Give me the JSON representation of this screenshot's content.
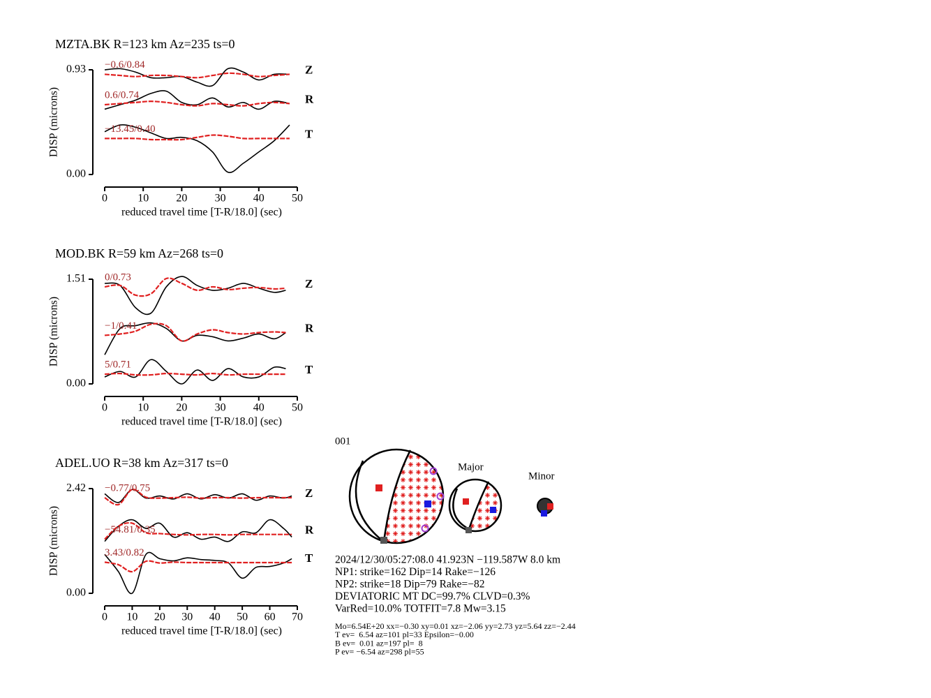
{
  "chart_data": [
    {
      "type": "line",
      "title": "MZTA.BK R=123 km Az=235 ts=0",
      "xlabel": "reduced travel time [T-R/18.0] (sec)",
      "ylabel": "DISP (microns)",
      "xlim": [
        0,
        50
      ],
      "xticks": [
        0,
        10,
        20,
        30,
        40,
        50
      ],
      "ylim": [
        0,
        0.93
      ],
      "yticks": [
        {
          "value": 0,
          "label": "0.00"
        },
        0.93
      ],
      "observed_color": "#000000",
      "synthetic_color": "#e02020",
      "x": [
        0,
        4,
        8,
        12,
        16,
        20,
        24,
        28,
        32,
        36,
        40,
        44,
        48
      ],
      "series": [
        {
          "component": "Z",
          "annotation": "−0.6/0.84",
          "observed": [
            0.93,
            0.94,
            0.91,
            0.86,
            0.86,
            0.87,
            0.82,
            0.79,
            0.94,
            0.91,
            0.84,
            0.89,
            0.89
          ],
          "synthetic": [
            0.89,
            0.88,
            0.87,
            0.88,
            0.88,
            0.87,
            0.86,
            0.88,
            0.9,
            0.89,
            0.87,
            0.88,
            0.89
          ]
        },
        {
          "component": "R",
          "annotation": "0.6/0.74",
          "observed": [
            0.58,
            0.62,
            0.66,
            0.72,
            0.74,
            0.64,
            0.62,
            0.68,
            0.6,
            0.64,
            0.58,
            0.65,
            0.63
          ],
          "synthetic": [
            0.62,
            0.63,
            0.64,
            0.65,
            0.64,
            0.62,
            0.61,
            0.63,
            0.62,
            0.61,
            0.63,
            0.64,
            0.63
          ]
        },
        {
          "component": "T",
          "annotation": "−13.45/0.40",
          "observed": [
            0.38,
            0.44,
            0.42,
            0.37,
            0.32,
            0.33,
            0.3,
            0.2,
            0.02,
            0.1,
            0.2,
            0.3,
            0.44
          ],
          "synthetic": [
            0.32,
            0.32,
            0.32,
            0.31,
            0.31,
            0.31,
            0.33,
            0.35,
            0.34,
            0.32,
            0.32,
            0.32,
            0.32
          ]
        }
      ]
    },
    {
      "type": "line",
      "title": "MOD.BK R=59 km Az=268 ts=0",
      "xlabel": "reduced travel time [T-R/18.0] (sec)",
      "ylabel": "DISP (microns)",
      "xlim": [
        0,
        50
      ],
      "xticks": [
        0,
        10,
        20,
        30,
        40,
        50
      ],
      "ylim": [
        0,
        1.51
      ],
      "yticks": [
        {
          "value": 0,
          "label": "0.00"
        },
        1.51
      ],
      "observed_color": "#000000",
      "synthetic_color": "#e02020",
      "x": [
        0,
        4,
        8,
        12,
        16,
        20,
        24,
        28,
        32,
        36,
        40,
        44,
        47
      ],
      "series": [
        {
          "component": "Z",
          "annotation": "0/0.73",
          "observed": [
            1.45,
            1.42,
            1.1,
            1.02,
            1.4,
            1.55,
            1.42,
            1.35,
            1.38,
            1.45,
            1.38,
            1.32,
            1.35
          ],
          "synthetic": [
            1.4,
            1.42,
            1.28,
            1.3,
            1.52,
            1.45,
            1.35,
            1.4,
            1.36,
            1.38,
            1.39,
            1.37,
            1.38
          ]
        },
        {
          "component": "R",
          "annotation": "−1/0.41",
          "observed": [
            0.42,
            0.8,
            0.84,
            0.88,
            0.8,
            0.62,
            0.7,
            0.68,
            0.62,
            0.66,
            0.72,
            0.65,
            0.74
          ],
          "synthetic": [
            0.7,
            0.72,
            0.76,
            0.86,
            0.84,
            0.62,
            0.72,
            0.78,
            0.74,
            0.72,
            0.74,
            0.75,
            0.74
          ]
        },
        {
          "component": "T",
          "annotation": "5/0.71",
          "observed": [
            0.1,
            0.18,
            0.1,
            0.35,
            0.18,
            0,
            0.2,
            0.05,
            0.22,
            0.1,
            0.1,
            0.24,
            0.22
          ],
          "synthetic": [
            0.14,
            0.15,
            0.13,
            0.13,
            0.15,
            0.14,
            0.13,
            0.15,
            0.13,
            0.14,
            0.14,
            0.14,
            0.14
          ]
        }
      ]
    },
    {
      "type": "line",
      "title": "ADEL.UO R=38 km Az=317 ts=0",
      "xlabel": "reduced travel time [T-R/18.0] (sec)",
      "ylabel": "DISP (microns)",
      "xlim": [
        0,
        70
      ],
      "xticks": [
        0,
        10,
        20,
        30,
        40,
        50,
        60,
        70
      ],
      "ylim": [
        0,
        2.42
      ],
      "yticks": [
        {
          "value": 0,
          "label": "0.00"
        },
        2.42
      ],
      "observed_color": "#000000",
      "synthetic_color": "#e02020",
      "x": [
        0,
        5,
        10,
        15,
        20,
        25,
        30,
        35,
        40,
        45,
        50,
        55,
        60,
        65,
        68
      ],
      "series": [
        {
          "component": "Z",
          "annotation": "−0.77/0.75",
          "observed": [
            2.3,
            2.1,
            2.4,
            2.2,
            2.25,
            2.18,
            2.3,
            2.18,
            2.28,
            2.2,
            2.3,
            2.15,
            2.25,
            2.2,
            2.25
          ],
          "synthetic": [
            2.21,
            2.05,
            2.4,
            2.22,
            2.2,
            2.21,
            2.22,
            2.2,
            2.21,
            2.21,
            2.2,
            2.21,
            2.21,
            2.21,
            2.21
          ]
        },
        {
          "component": "R",
          "annotation": "−54.81/0.35",
          "observed": [
            1.2,
            1.55,
            1.7,
            1.5,
            1.62,
            1.3,
            1.4,
            1.25,
            1.3,
            1.2,
            1.42,
            1.4,
            1.7,
            1.5,
            1.3
          ],
          "synthetic": [
            1.25,
            1.55,
            1.62,
            1.4,
            1.38,
            1.36,
            1.35,
            1.36,
            1.36,
            1.35,
            1.36,
            1.36,
            1.36,
            1.36,
            1.36
          ]
        },
        {
          "component": "T",
          "annotation": "3.43/0.82",
          "observed": [
            0.9,
            0.5,
            0,
            0.9,
            0.8,
            0.75,
            0.82,
            0.78,
            0.76,
            0.7,
            0.35,
            0.6,
            0.62,
            0.7,
            0.8
          ],
          "synthetic": [
            0.72,
            0.66,
            0.5,
            0.74,
            0.7,
            0.72,
            0.71,
            0.71,
            0.71,
            0.71,
            0.71,
            0.71,
            0.71,
            0.71,
            0.71
          ]
        }
      ]
    }
  ],
  "mechanism": {
    "id": "001",
    "major_label": "Major",
    "minor_label": "Minor",
    "lines": [
      "2024/12/30/05:27:08.0 41.923N −119.587W 8.0 km",
      "NP1: strike=162 Dip=14 Rake=−126",
      "NP2: strike=18 Dip=79 Rake=−82",
      "DEVIATORIC MT DC=99.7% CLVD=0.3%",
      "VarRed=10.0% TOTFIT=7.8 Mw=3.15"
    ],
    "details": [
      "Mo=6.54E+20 xx=−0.30 xy=0.01 xz=−2.06 yy=2.73 yz=5.64 zz=−2.44",
      "T ev=  6.54 az=101 pl=33 Epsilon=−0.00",
      "B ev=  0.01 az=197 pl=  8",
      "P ev= −6.54 az=298 pl=55"
    ]
  }
}
